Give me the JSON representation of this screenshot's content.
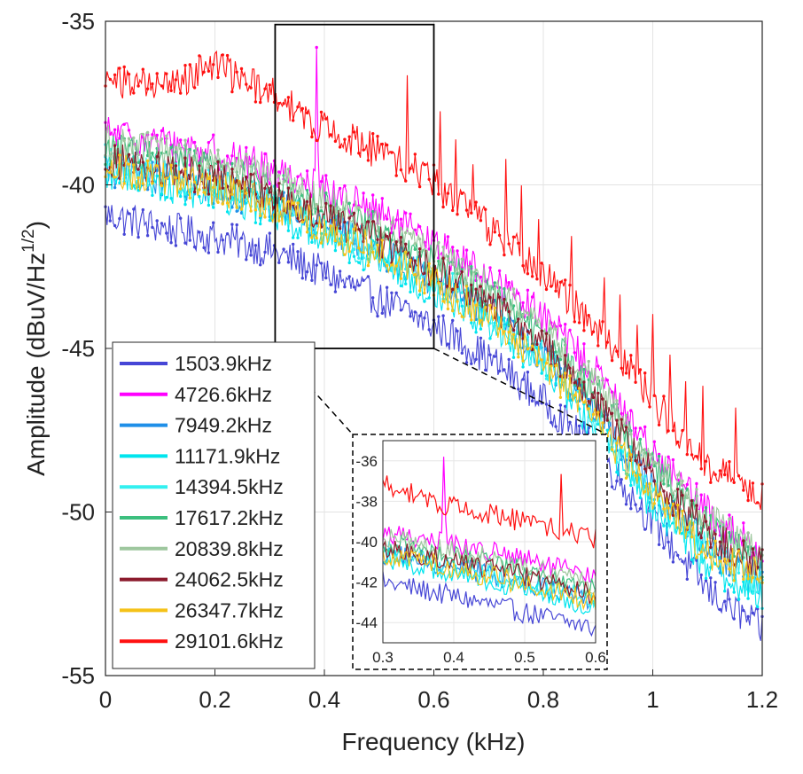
{
  "chart_data": {
    "type": "line",
    "xlabel": "Frequency (kHz)",
    "ylabel": "Amplitude (dBuV/Hz",
    "ylabel_sup": "1/2",
    "ylabel_close": ")",
    "xlim": [
      0,
      1.2
    ],
    "ylim": [
      -55,
      -35
    ],
    "xticks": [
      "0",
      "0.2",
      "0.4",
      "0.6",
      "0.8",
      "1",
      "1.2"
    ],
    "yticks": [
      "-35",
      "-40",
      "-45",
      "-50",
      "-55"
    ],
    "grid": true,
    "legend_position": "bottom-left",
    "x_knots": [
      0,
      0.1,
      0.2,
      0.3,
      0.4,
      0.5,
      0.6,
      0.7,
      0.8,
      0.9,
      1.0,
      1.1,
      1.2
    ],
    "series": [
      {
        "name": "1503.9kHz",
        "color": "#4646d6",
        "noise": 0.3,
        "y": [
          -40.9,
          -41.3,
          -41.6,
          -42.0,
          -42.7,
          -43.5,
          -44.3,
          -45.3,
          -46.6,
          -48.2,
          -50.3,
          -52.4,
          -53.6
        ]
      },
      {
        "name": "4726.6kHz",
        "color": "#ff00ff",
        "noise": 0.3,
        "y": [
          -38.4,
          -38.7,
          -39.0,
          -39.5,
          -40.1,
          -40.9,
          -41.8,
          -42.8,
          -44.0,
          -45.8,
          -48.2,
          -50.0,
          -51.3
        ]
      },
      {
        "name": "7949.2kHz",
        "color": "#1f8fe8",
        "noise": 0.3,
        "y": [
          -39.5,
          -39.8,
          -40.1,
          -40.6,
          -41.2,
          -42.0,
          -42.9,
          -43.9,
          -45.2,
          -47.0,
          -49.3,
          -51.1,
          -52.1
        ]
      },
      {
        "name": "11171.9kHz",
        "color": "#00e5ee",
        "noise": 0.3,
        "y": [
          -39.6,
          -40.0,
          -40.3,
          -40.8,
          -41.5,
          -42.3,
          -43.2,
          -44.2,
          -45.6,
          -47.6,
          -49.8,
          -51.6,
          -52.6
        ]
      },
      {
        "name": "14394.5kHz",
        "color": "#33f0f0",
        "noise": 0.3,
        "y": [
          -39.3,
          -39.6,
          -40.0,
          -40.5,
          -41.2,
          -42.0,
          -42.9,
          -43.9,
          -45.3,
          -47.2,
          -49.4,
          -51.2,
          -52.2
        ]
      },
      {
        "name": "17617.2kHz",
        "color": "#3cbf7e",
        "noise": 0.3,
        "y": [
          -38.9,
          -39.2,
          -39.5,
          -40.0,
          -40.6,
          -41.4,
          -42.3,
          -43.3,
          -44.6,
          -46.4,
          -48.6,
          -50.4,
          -51.5
        ]
      },
      {
        "name": "20839.8kHz",
        "color": "#9ec79e",
        "noise": 0.3,
        "y": [
          -38.7,
          -39.0,
          -39.3,
          -39.8,
          -40.4,
          -41.2,
          -42.1,
          -43.1,
          -44.4,
          -46.2,
          -48.4,
          -50.2,
          -51.3
        ]
      },
      {
        "name": "24062.5kHz",
        "color": "#8b1a2c",
        "noise": 0.3,
        "y": [
          -39.2,
          -39.5,
          -39.8,
          -40.3,
          -40.9,
          -41.7,
          -42.6,
          -43.6,
          -44.9,
          -46.7,
          -48.9,
          -50.7,
          -51.6
        ]
      },
      {
        "name": "26347.7kHz",
        "color": "#f5c218",
        "noise": 0.3,
        "y": [
          -39.5,
          -39.8,
          -40.1,
          -40.6,
          -41.3,
          -42.1,
          -43.0,
          -44.0,
          -45.4,
          -47.3,
          -49.5,
          -51.2,
          -52.0
        ]
      },
      {
        "name": "29101.6kHz",
        "color": "#ff1010",
        "noise": 0.3,
        "y": [
          -36.8,
          -37.0,
          -36.4,
          -37.2,
          -38.3,
          -39.0,
          -39.9,
          -41.3,
          -42.7,
          -44.4,
          -46.6,
          -48.5,
          -49.6
        ]
      }
    ],
    "highlight_box": {
      "x": [
        0.31,
        0.6
      ],
      "y": [
        -45,
        -35.1
      ]
    },
    "inset": {
      "xlim": [
        0.3,
        0.6
      ],
      "ylim": [
        -45,
        -35
      ],
      "xticks": [
        "0.3",
        "0.4",
        "0.5",
        "0.6"
      ],
      "yticks": [
        "-36",
        "-38",
        "-40",
        "-42",
        "-44"
      ]
    }
  }
}
